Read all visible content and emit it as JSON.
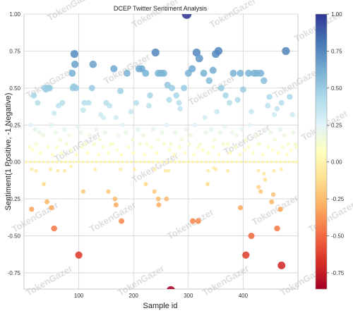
{
  "chart_data": {
    "type": "scatter",
    "title": "DCEP Twitter Sentiment Analysis",
    "xlabel": "Sample id",
    "ylabel": "Sentiment(1 Positive, -1 Negative)",
    "xlim": [
      0,
      500
    ],
    "ylim": [
      -0.86,
      1.0
    ],
    "x_ticks": [
      100,
      200,
      300,
      400
    ],
    "y_ticks": [
      1.0,
      0.75,
      0.5,
      0.25,
      0.0,
      -0.25,
      -0.5,
      -0.75
    ],
    "x_tick_labels": [
      "100",
      "200",
      "300",
      "400"
    ],
    "y_tick_labels": [
      "1.00",
      "0.75",
      "0.50",
      "0.25",
      "0.00",
      "-0.25",
      "-0.50",
      "-0.75"
    ],
    "grid": true,
    "colormap": "RdYlBu",
    "colorbar": {
      "range": [
        -0.86,
        1.0
      ],
      "ticks": [
        1.0,
        0.75,
        0.5,
        0.25,
        0.0,
        -0.25,
        -0.5,
        -0.75
      ],
      "tick_labels": [
        "1.00",
        "0.75",
        "0.50",
        "0.25",
        "0.00",
        "-0.25",
        "-0.50",
        "-0.75"
      ]
    },
    "marker_size_encodes": "absolute sentiment",
    "watermark_text": "TokenGazer",
    "points": [
      [
        297,
        1.0
      ],
      [
        38,
        0.5
      ],
      [
        42,
        0.5
      ],
      [
        47,
        0.5
      ],
      [
        45,
        0.5
      ],
      [
        40,
        0.49
      ],
      [
        88,
        0.6
      ],
      [
        92,
        0.73
      ],
      [
        93,
        0.66
      ],
      [
        89,
        0.5
      ],
      [
        95,
        0.5
      ],
      [
        91,
        0.51
      ],
      [
        118,
        0.4
      ],
      [
        126,
        0.66
      ],
      [
        124,
        0.5
      ],
      [
        110,
        0.4
      ],
      [
        108,
        0.35
      ],
      [
        150,
        0.4
      ],
      [
        164,
        0.63
      ],
      [
        188,
        0.6
      ],
      [
        156,
        0.38
      ],
      [
        176,
        0.48
      ],
      [
        205,
        0.4
      ],
      [
        210,
        0.63
      ],
      [
        215,
        0.63
      ],
      [
        222,
        0.6
      ],
      [
        230,
        0.45
      ],
      [
        240,
        0.74
      ],
      [
        245,
        0.6
      ],
      [
        250,
        0.6
      ],
      [
        255,
        0.6
      ],
      [
        262,
        0.52
      ],
      [
        270,
        0.5
      ],
      [
        278,
        0.45
      ],
      [
        283,
        0.4
      ],
      [
        292,
        0.5
      ],
      [
        300,
        0.6
      ],
      [
        307,
        0.63
      ],
      [
        315,
        0.74
      ],
      [
        320,
        0.7
      ],
      [
        328,
        0.6
      ],
      [
        338,
        0.55
      ],
      [
        345,
        0.62
      ],
      [
        350,
        0.73
      ],
      [
        355,
        0.75
      ],
      [
        360,
        0.5
      ],
      [
        368,
        0.45
      ],
      [
        375,
        0.4
      ],
      [
        382,
        0.6
      ],
      [
        395,
        0.6
      ],
      [
        400,
        0.49
      ],
      [
        410,
        0.6
      ],
      [
        420,
        0.6
      ],
      [
        425,
        0.6
      ],
      [
        432,
        0.6
      ],
      [
        438,
        0.55
      ],
      [
        445,
        0.38
      ],
      [
        457,
        0.32
      ],
      [
        470,
        0.4
      ],
      [
        478,
        0.75
      ],
      [
        25,
        0.4
      ],
      [
        18,
        0.45
      ],
      [
        55,
        0.33
      ],
      [
        63,
        0.38
      ],
      [
        70,
        0.4
      ],
      [
        140,
        0.32
      ],
      [
        145,
        0.3
      ],
      [
        168,
        0.3
      ],
      [
        195,
        0.34
      ],
      [
        228,
        0.38
      ],
      [
        265,
        0.42
      ],
      [
        285,
        0.36
      ],
      [
        330,
        0.3
      ],
      [
        352,
        0.34
      ],
      [
        390,
        0.42
      ],
      [
        415,
        0.34
      ],
      [
        448,
        0.44
      ],
      [
        462,
        0.36
      ],
      [
        485,
        0.44
      ],
      [
        490,
        0.32
      ],
      [
        12,
        0.25
      ],
      [
        20,
        0.22
      ],
      [
        28,
        0.2
      ],
      [
        35,
        0.18
      ],
      [
        50,
        0.25
      ],
      [
        58,
        0.2
      ],
      [
        66,
        0.15
      ],
      [
        74,
        0.22
      ],
      [
        82,
        0.18
      ],
      [
        98,
        0.24
      ],
      [
        104,
        0.2
      ],
      [
        112,
        0.12
      ],
      [
        120,
        0.18
      ],
      [
        132,
        0.22
      ],
      [
        138,
        0.15
      ],
      [
        148,
        0.2
      ],
      [
        158,
        0.12
      ],
      [
        172,
        0.18
      ],
      [
        180,
        0.25
      ],
      [
        186,
        0.2
      ],
      [
        198,
        0.15
      ],
      [
        208,
        0.22
      ],
      [
        218,
        0.18
      ],
      [
        224,
        0.12
      ],
      [
        236,
        0.22
      ],
      [
        244,
        0.15
      ],
      [
        252,
        0.2
      ],
      [
        260,
        0.25
      ],
      [
        268,
        0.12
      ],
      [
        276,
        0.2
      ],
      [
        288,
        0.15
      ],
      [
        296,
        0.22
      ],
      [
        305,
        0.18
      ],
      [
        312,
        0.25
      ],
      [
        322,
        0.12
      ],
      [
        332,
        0.2
      ],
      [
        342,
        0.22
      ],
      [
        348,
        0.15
      ],
      [
        358,
        0.2
      ],
      [
        366,
        0.24
      ],
      [
        372,
        0.12
      ],
      [
        380,
        0.2
      ],
      [
        388,
        0.18
      ],
      [
        398,
        0.22
      ],
      [
        405,
        0.15
      ],
      [
        412,
        0.25
      ],
      [
        422,
        0.18
      ],
      [
        430,
        0.12
      ],
      [
        440,
        0.22
      ],
      [
        450,
        0.2
      ],
      [
        458,
        0.15
      ],
      [
        468,
        0.22
      ],
      [
        475,
        0.18
      ],
      [
        482,
        0.12
      ],
      [
        492,
        0.2
      ],
      [
        497,
        0.1
      ],
      [
        10,
        0.1
      ],
      [
        16,
        0.08
      ],
      [
        22,
        0.12
      ],
      [
        30,
        0.06
      ],
      [
        44,
        0.1
      ],
      [
        52,
        0.05
      ],
      [
        60,
        0.1
      ],
      [
        68,
        0.06
      ],
      [
        78,
        0.12
      ],
      [
        86,
        0.08
      ],
      [
        96,
        0.05
      ],
      [
        106,
        0.1
      ],
      [
        116,
        0.06
      ],
      [
        128,
        0.12
      ],
      [
        136,
        0.05
      ],
      [
        144,
        0.1
      ],
      [
        154,
        0.06
      ],
      [
        162,
        0.12
      ],
      [
        170,
        0.08
      ],
      [
        178,
        0.05
      ],
      [
        190,
        0.1
      ],
      [
        200,
        0.06
      ],
      [
        212,
        0.12
      ],
      [
        220,
        0.05
      ],
      [
        232,
        0.1
      ],
      [
        242,
        0.06
      ],
      [
        256,
        0.12
      ],
      [
        266,
        0.08
      ],
      [
        274,
        0.05
      ],
      [
        284,
        0.1
      ],
      [
        294,
        0.06
      ],
      [
        302,
        0.12
      ],
      [
        310,
        0.05
      ],
      [
        318,
        0.1
      ],
      [
        326,
        0.08
      ],
      [
        336,
        0.06
      ],
      [
        346,
        0.1
      ],
      [
        356,
        0.05
      ],
      [
        364,
        0.12
      ],
      [
        376,
        0.06
      ],
      [
        386,
        0.1
      ],
      [
        394,
        0.05
      ],
      [
        402,
        0.08
      ],
      [
        410,
        0.1
      ],
      [
        418,
        0.06
      ],
      [
        428,
        0.12
      ],
      [
        436,
        0.05
      ],
      [
        446,
        0.1
      ],
      [
        454,
        0.08
      ],
      [
        464,
        0.06
      ],
      [
        472,
        0.1
      ],
      [
        480,
        0.05
      ],
      [
        488,
        0.08
      ],
      [
        495,
        0.12
      ],
      [
        4,
        0.0
      ],
      [
        12,
        0.0
      ],
      [
        20,
        0.0
      ],
      [
        28,
        0.0
      ],
      [
        36,
        0.0
      ],
      [
        44,
        0.0
      ],
      [
        52,
        0.0
      ],
      [
        60,
        0.0
      ],
      [
        68,
        0.0
      ],
      [
        76,
        0.0
      ],
      [
        84,
        0.0
      ],
      [
        92,
        0.0
      ],
      [
        100,
        0.0
      ],
      [
        108,
        0.0
      ],
      [
        116,
        0.0
      ],
      [
        124,
        0.0
      ],
      [
        132,
        0.0
      ],
      [
        140,
        0.0
      ],
      [
        148,
        0.0
      ],
      [
        156,
        0.0
      ],
      [
        164,
        0.0
      ],
      [
        172,
        0.0
      ],
      [
        180,
        0.0
      ],
      [
        188,
        0.0
      ],
      [
        196,
        0.0
      ],
      [
        204,
        0.0
      ],
      [
        212,
        0.0
      ],
      [
        220,
        0.0
      ],
      [
        228,
        0.0
      ],
      [
        236,
        0.0
      ],
      [
        244,
        0.0
      ],
      [
        252,
        0.0
      ],
      [
        260,
        0.0
      ],
      [
        268,
        0.0
      ],
      [
        276,
        0.0
      ],
      [
        284,
        0.0
      ],
      [
        292,
        0.0
      ],
      [
        300,
        0.0
      ],
      [
        308,
        0.0
      ],
      [
        316,
        0.0
      ],
      [
        324,
        0.0
      ],
      [
        332,
        0.0
      ],
      [
        340,
        0.0
      ],
      [
        348,
        0.0
      ],
      [
        356,
        0.0
      ],
      [
        364,
        0.0
      ],
      [
        372,
        0.0
      ],
      [
        380,
        0.0
      ],
      [
        388,
        0.0
      ],
      [
        396,
        0.0
      ],
      [
        404,
        0.0
      ],
      [
        412,
        0.0
      ],
      [
        420,
        0.0
      ],
      [
        428,
        0.0
      ],
      [
        436,
        0.0
      ],
      [
        444,
        0.0
      ],
      [
        452,
        0.0
      ],
      [
        460,
        0.0
      ],
      [
        468,
        0.0
      ],
      [
        476,
        0.0
      ],
      [
        484,
        0.0
      ],
      [
        492,
        0.0
      ],
      [
        498,
        0.0
      ],
      [
        14,
        -0.05
      ],
      [
        22,
        -0.06
      ],
      [
        48,
        -0.05
      ],
      [
        62,
        -0.06
      ],
      [
        74,
        -0.06
      ],
      [
        86,
        -0.03
      ],
      [
        130,
        -0.05
      ],
      [
        176,
        -0.05
      ],
      [
        202,
        -0.05
      ],
      [
        238,
        -0.05
      ],
      [
        258,
        -0.06
      ],
      [
        264,
        -0.06
      ],
      [
        336,
        -0.06
      ],
      [
        346,
        -0.04
      ],
      [
        372,
        -0.06
      ],
      [
        428,
        -0.06
      ],
      [
        438,
        -0.08
      ],
      [
        456,
        -0.06
      ],
      [
        470,
        -0.05
      ],
      [
        14,
        -0.32
      ],
      [
        36,
        -0.15
      ],
      [
        42,
        -0.27
      ],
      [
        50,
        -0.31
      ],
      [
        55,
        -0.45
      ],
      [
        100,
        -0.63
      ],
      [
        108,
        -0.2
      ],
      [
        154,
        -0.2
      ],
      [
        166,
        -0.25
      ],
      [
        168,
        -0.29
      ],
      [
        178,
        -0.4
      ],
      [
        222,
        -0.15
      ],
      [
        238,
        -0.2
      ],
      [
        245,
        -0.25
      ],
      [
        246,
        -0.29
      ],
      [
        260,
        -0.25
      ],
      [
        268,
        -0.87
      ],
      [
        308,
        -0.4
      ],
      [
        318,
        -0.4
      ],
      [
        335,
        -0.15
      ],
      [
        350,
        -0.05
      ],
      [
        395,
        -0.31
      ],
      [
        405,
        -0.63
      ],
      [
        415,
        -0.5
      ],
      [
        428,
        -0.17
      ],
      [
        432,
        -0.2
      ],
      [
        452,
        -0.27
      ],
      [
        462,
        -0.45
      ],
      [
        468,
        -0.32
      ],
      [
        470,
        -0.7
      ],
      [
        455,
        -0.22
      ],
      [
        440,
        -0.12
      ]
    ]
  },
  "plot_frame": {
    "plot_bg": "#ffffff",
    "grid_color": "#d9d9d9"
  }
}
